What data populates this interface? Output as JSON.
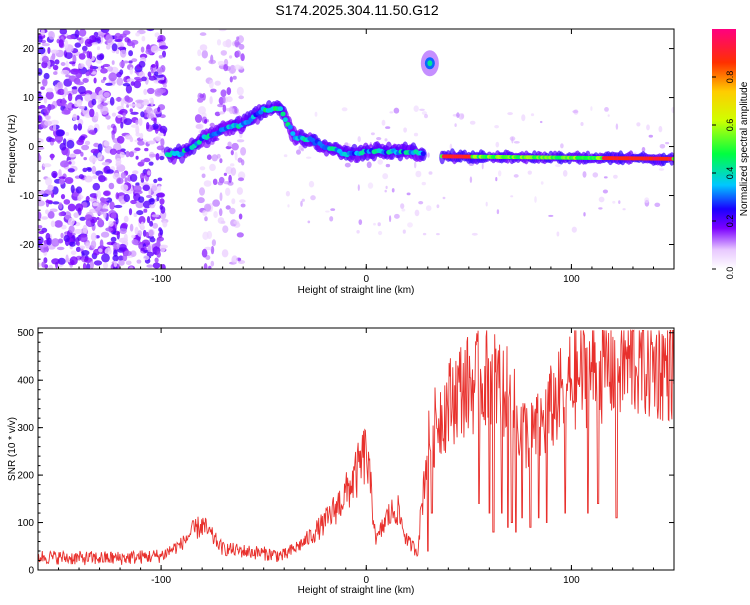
{
  "title": "S174.2025.304.11.50.G12",
  "colors": {
    "snr_line": "#e8302c",
    "axis": "#000000",
    "background": "#ffffff"
  },
  "chart_data": [
    {
      "type": "heatmap",
      "title": "S174.2025.304.11.50.G12",
      "xlabel": "Height of straight line (km)",
      "ylabel": "Frequency (Hz)",
      "xlim": [
        -160,
        150
      ],
      "ylim": [
        -25,
        24
      ],
      "xticks": [
        -100,
        0,
        100
      ],
      "yticks": [
        -20,
        -10,
        0,
        10,
        20
      ],
      "colorbar": {
        "label": "Normalized spectral amplitude",
        "range": [
          0,
          1
        ],
        "ticks": [
          "0.0",
          "0.2",
          "0.4",
          "0.6",
          "0.8"
        ],
        "tick_values": [
          0,
          0.2,
          0.4,
          0.6,
          0.8
        ]
      },
      "ridge": {
        "description_points_x": [
          -97,
          -90,
          -80,
          -70,
          -60,
          -50,
          -42,
          -35,
          -28,
          -20,
          -10,
          0,
          10,
          20,
          28
        ],
        "description_points_freq": [
          -1.5,
          -1.5,
          1.5,
          3.5,
          4.5,
          7.5,
          8.0,
          2.0,
          1.5,
          0,
          -1.5,
          -1,
          -1,
          -1,
          -1.5
        ],
        "segment2_x": [
          37,
          150
        ],
        "segment2_freq": [
          -2,
          -2.5
        ],
        "spot_x": 31,
        "spot_freq": 17
      }
    },
    {
      "type": "line",
      "xlabel": "Height of straight line (km)",
      "ylabel": "SNR (10 * v/v)",
      "xlim": [
        -160,
        150
      ],
      "ylim": [
        0,
        510
      ],
      "xticks": [
        -100,
        0,
        100
      ],
      "yticks": [
        0,
        100,
        200,
        300,
        400,
        500
      ],
      "series": [
        {
          "name": "SNR",
          "x": [
            -160,
            -140,
            -120,
            -100,
            -90,
            -85,
            -80,
            -75,
            -70,
            -60,
            -50,
            -40,
            -30,
            -20,
            -15,
            -10,
            -5,
            0,
            5,
            10,
            15,
            20,
            25,
            28,
            30,
            35,
            40,
            45,
            50,
            55,
            60,
            65,
            70,
            75,
            80,
            85,
            90,
            95,
            100,
            110,
            120,
            130,
            140,
            150
          ],
          "values": [
            28,
            25,
            25,
            30,
            55,
            80,
            95,
            70,
            45,
            40,
            35,
            30,
            60,
            100,
            130,
            160,
            200,
            250,
            60,
            110,
            130,
            60,
            40,
            180,
            260,
            320,
            350,
            380,
            390,
            395,
            410,
            390,
            360,
            300,
            280,
            300,
            340,
            370,
            400,
            420,
            430,
            440,
            430,
            430
          ]
        }
      ],
      "dropouts_x": [
        30,
        32,
        55,
        60,
        62,
        66,
        69,
        71,
        73,
        76,
        80,
        84,
        88,
        97,
        108,
        113,
        122
      ],
      "dropouts_min": [
        40,
        120,
        140,
        120,
        80,
        120,
        90,
        100,
        80,
        110,
        90,
        110,
        100,
        120,
        120,
        140,
        110
      ]
    }
  ]
}
